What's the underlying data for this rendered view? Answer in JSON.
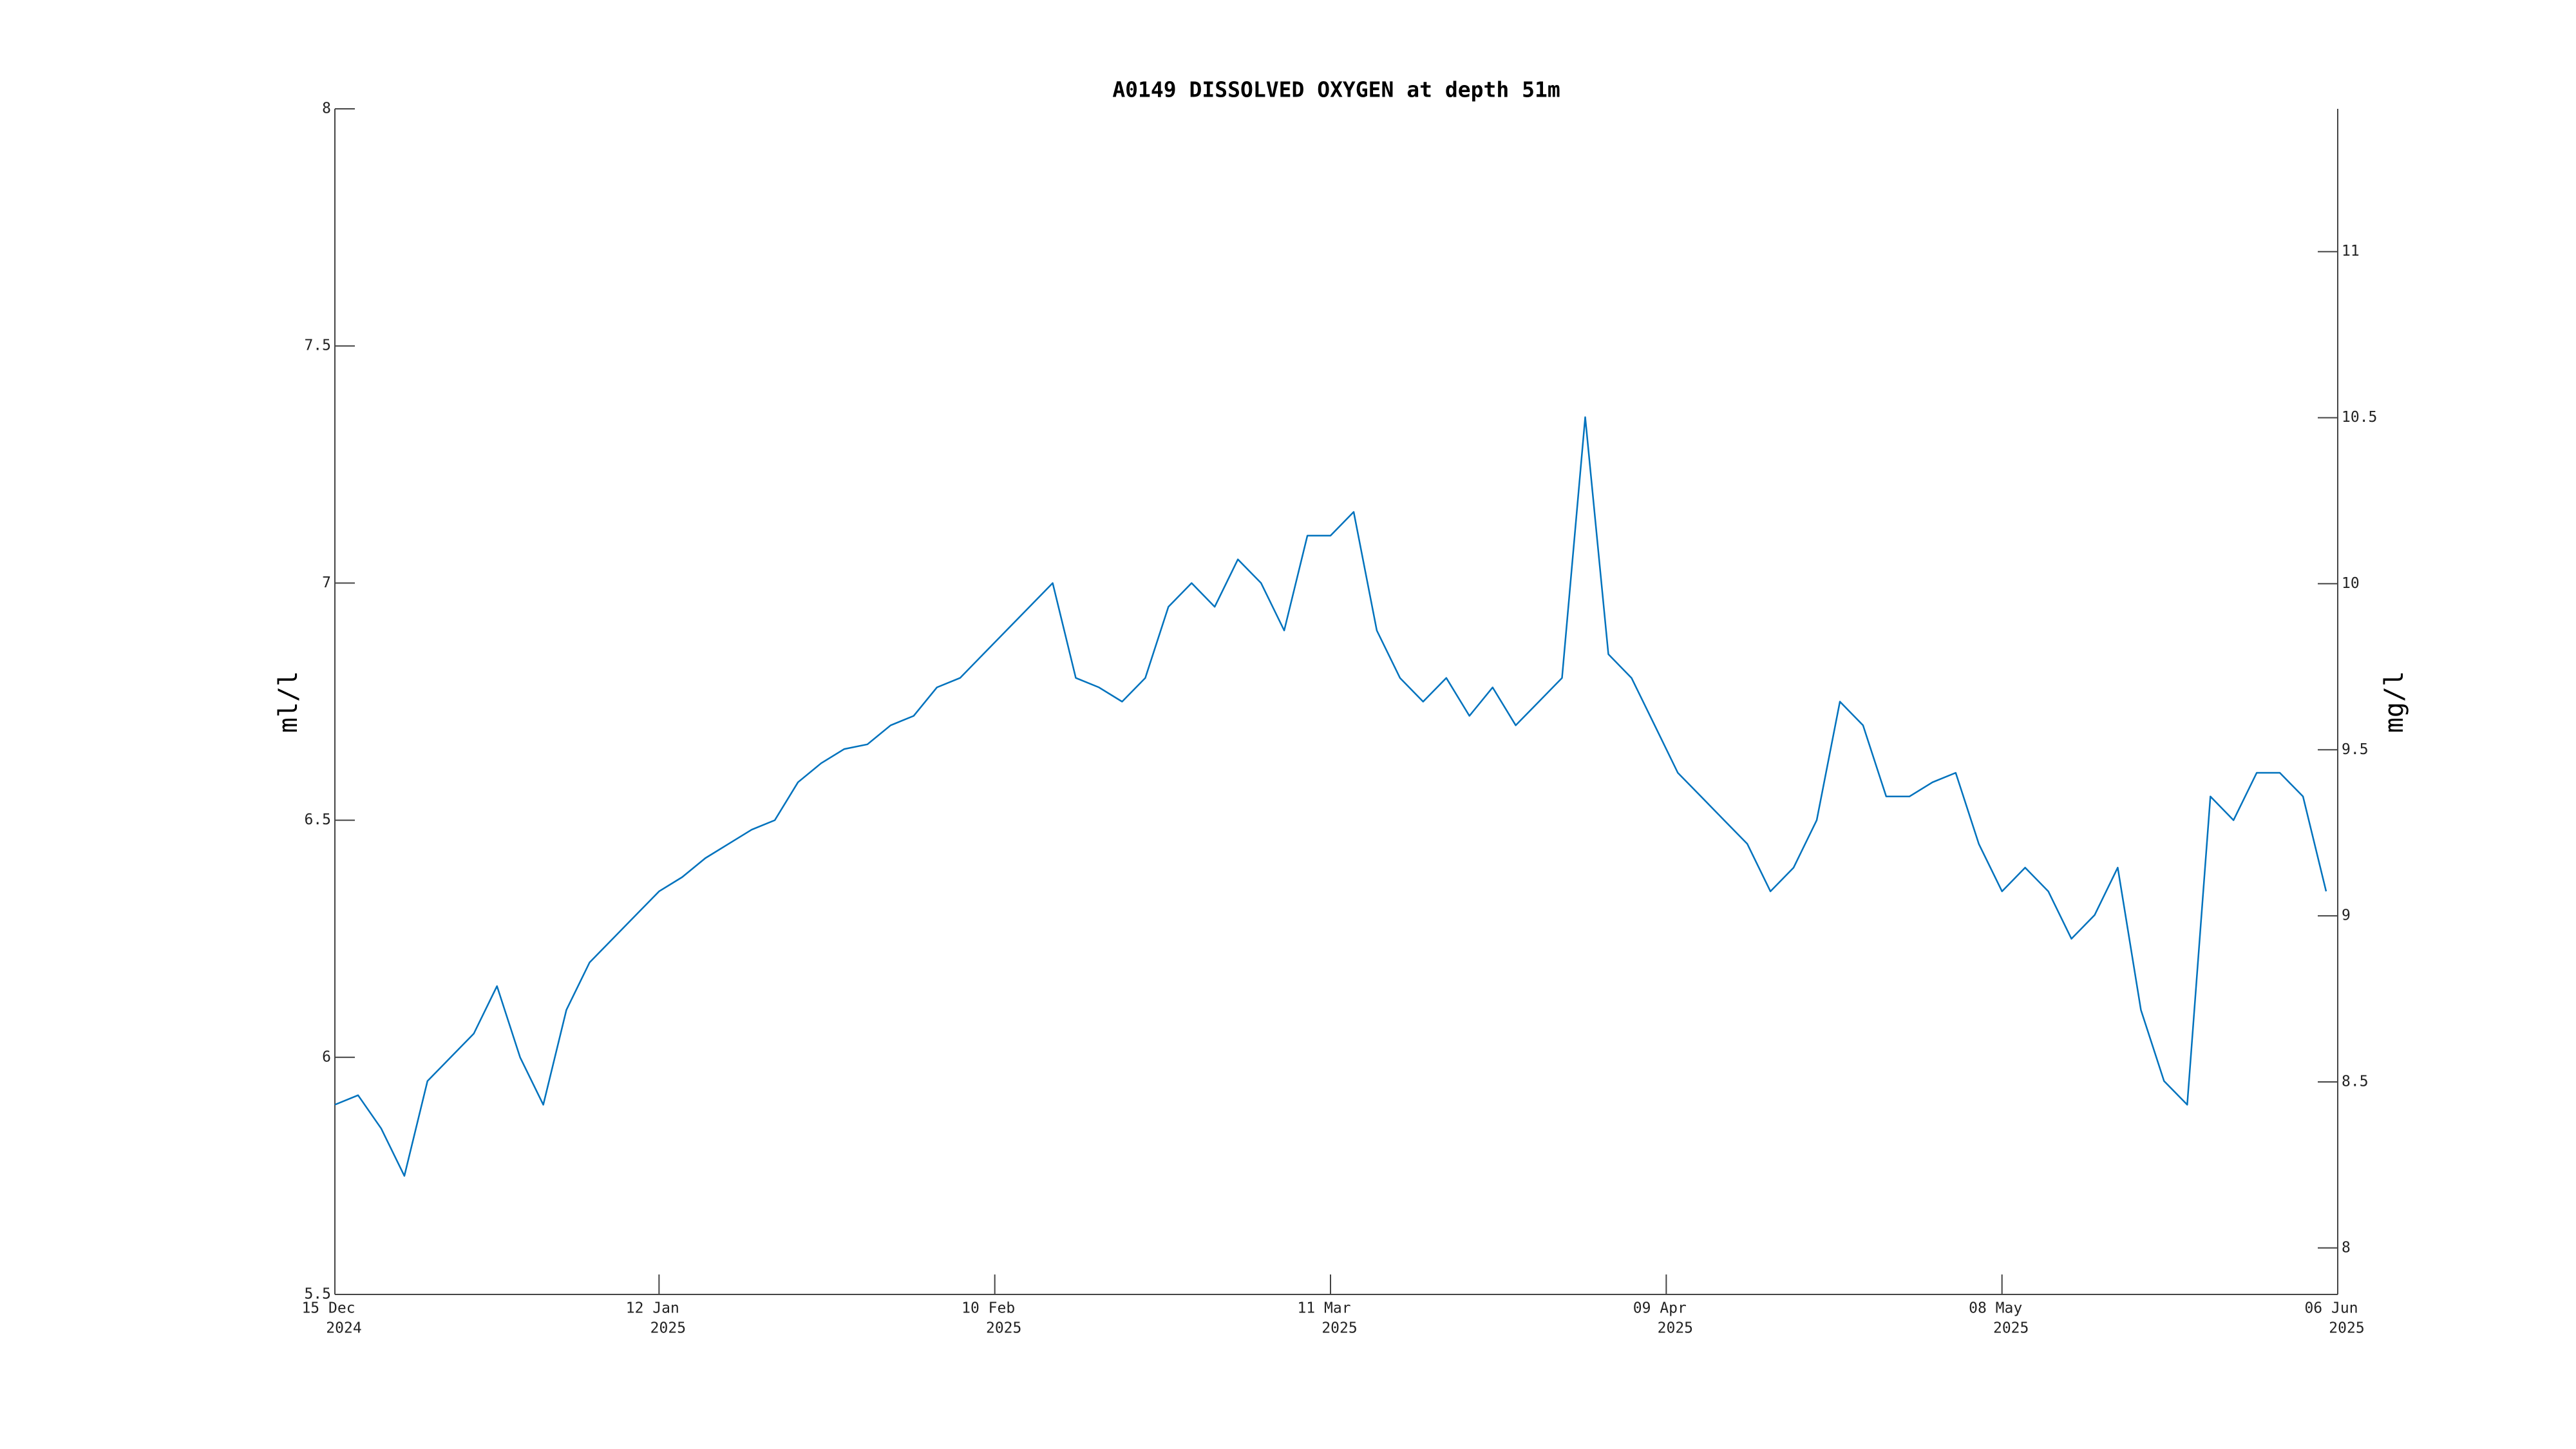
{
  "chart_data": {
    "type": "line",
    "title": "A0149 DISSOLVED OXYGEN at depth 51m",
    "ylabel": "ml/l",
    "y2label": "mg/l",
    "x": [
      "2024-12-15",
      "2024-12-17",
      "2024-12-19",
      "2024-12-21",
      "2024-12-23",
      "2024-12-25",
      "2024-12-27",
      "2024-12-29",
      "2024-12-31",
      "2025-01-02",
      "2025-01-04",
      "2025-01-06",
      "2025-01-08",
      "2025-01-10",
      "2025-01-12",
      "2025-01-14",
      "2025-01-16",
      "2025-01-18",
      "2025-01-20",
      "2025-01-22",
      "2025-01-24",
      "2025-01-26",
      "2025-01-28",
      "2025-01-30",
      "2025-02-01",
      "2025-02-03",
      "2025-02-05",
      "2025-02-07",
      "2025-02-09",
      "2025-02-11",
      "2025-02-13",
      "2025-02-15",
      "2025-02-17",
      "2025-02-19",
      "2025-02-21",
      "2025-02-23",
      "2025-02-25",
      "2025-02-27",
      "2025-03-01",
      "2025-03-03",
      "2025-03-05",
      "2025-03-07",
      "2025-03-09",
      "2025-03-11",
      "2025-03-13",
      "2025-03-15",
      "2025-03-17",
      "2025-03-19",
      "2025-03-21",
      "2025-03-23",
      "2025-03-25",
      "2025-03-27",
      "2025-03-29",
      "2025-03-31",
      "2025-04-02",
      "2025-04-04",
      "2025-04-06",
      "2025-04-08",
      "2025-04-10",
      "2025-04-12",
      "2025-04-14",
      "2025-04-16",
      "2025-04-18",
      "2025-04-20",
      "2025-04-22",
      "2025-04-24",
      "2025-04-26",
      "2025-04-28",
      "2025-04-30",
      "2025-05-02",
      "2025-05-04",
      "2025-05-06",
      "2025-05-08",
      "2025-05-10",
      "2025-05-12",
      "2025-05-14",
      "2025-05-16",
      "2025-05-18",
      "2025-05-20",
      "2025-05-22",
      "2025-05-24",
      "2025-05-26",
      "2025-05-28",
      "2025-05-30",
      "2025-06-01",
      "2025-06-03",
      "2025-06-05"
    ],
    "series": [
      {
        "color": "#0072bd",
        "values": [
          5.9,
          5.92,
          5.85,
          5.75,
          5.95,
          6.0,
          6.05,
          6.15,
          6.0,
          5.9,
          6.1,
          6.2,
          6.25,
          6.3,
          6.35,
          6.38,
          6.42,
          6.45,
          6.48,
          6.5,
          6.58,
          6.62,
          6.65,
          6.66,
          6.7,
          6.72,
          6.78,
          6.8,
          6.85,
          6.9,
          6.95,
          7.0,
          6.8,
          6.78,
          6.75,
          6.8,
          6.95,
          7.0,
          6.95,
          7.05,
          7.0,
          6.9,
          7.1,
          7.1,
          7.15,
          6.9,
          6.8,
          6.75,
          6.8,
          6.72,
          6.78,
          6.7,
          6.75,
          6.8,
          7.35,
          6.85,
          6.8,
          6.7,
          6.6,
          6.55,
          6.5,
          6.45,
          6.35,
          6.4,
          6.5,
          6.75,
          6.7,
          6.55,
          6.55,
          6.58,
          6.6,
          6.45,
          6.35,
          6.4,
          6.35,
          6.25,
          6.3,
          6.4,
          6.1,
          5.95,
          5.9,
          6.55,
          6.5,
          6.6,
          6.6,
          6.55,
          6.35
        ]
      }
    ],
    "xlim": [
      "2024-12-15",
      "2025-06-06"
    ],
    "xticks": [
      {
        "value": "2024-12-15",
        "label": [
          "15 Dec",
          "2024"
        ]
      },
      {
        "value": "2025-01-12",
        "label": [
          "12 Jan",
          "2025"
        ]
      },
      {
        "value": "2025-02-10",
        "label": [
          "10 Feb",
          "2025"
        ]
      },
      {
        "value": "2025-03-11",
        "label": [
          "11 Mar",
          "2025"
        ]
      },
      {
        "value": "2025-04-09",
        "label": [
          "09 Apr",
          "2025"
        ]
      },
      {
        "value": "2025-05-08",
        "label": [
          "08 May",
          "2025"
        ]
      },
      {
        "value": "2025-06-06",
        "label": [
          "06 Jun",
          "2025"
        ]
      }
    ],
    "ylim": [
      5.5,
      8
    ],
    "yticks": [
      5.5,
      6,
      6.5,
      7,
      7.5,
      8
    ],
    "y2lim": [
      7.86,
      11.43
    ],
    "y2ticks": [
      8,
      8.5,
      9,
      9.5,
      10,
      10.5,
      11
    ]
  }
}
